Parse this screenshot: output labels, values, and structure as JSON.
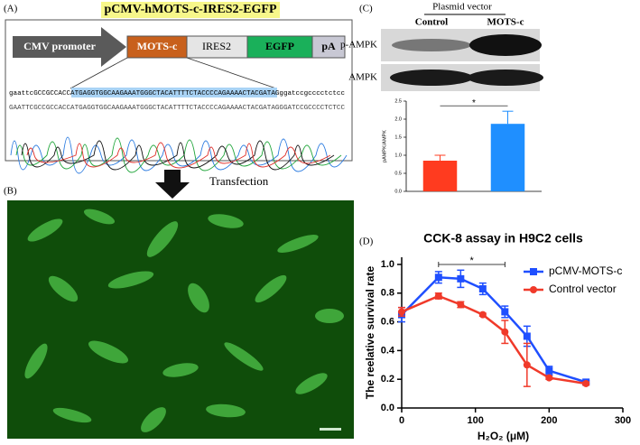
{
  "figure": {
    "a": {
      "label": "(A)",
      "title": "pCMV-hMOTS-c-IRES2-EGFP",
      "construct": [
        "CMV promoter",
        "MOTS-c",
        "IRES2",
        "EGFP",
        "pA"
      ],
      "seq_top": [
        "gaattcGCCGCCACC",
        "ATGAGGTGGCAAGAAATGGGCTACATTTTCTACCCCAGAAAACTACGATAG",
        "ggatccgcccctctcc"
      ],
      "seq_bottom": "GAATTCGCCGCCACCATGAGGTGGCAAGAAATGGGCTACATTTTCTACCCCAGAAAACTACGATAGGGATCCGCCCCTCTCC"
    },
    "arrow_label": "Transfection",
    "b": {
      "label": "(B)"
    },
    "c": {
      "label": "(C)",
      "header": "Plasmid vector",
      "lanes": [
        "Control",
        "MOTS-c"
      ],
      "blots": [
        "p-AMPK",
        "AMPK"
      ]
    },
    "d": {
      "label": "(D)"
    }
  },
  "chart_data": [
    {
      "type": "bar",
      "categories": [
        null,
        null
      ],
      "values": [
        0.85,
        1.87
      ],
      "errors": [
        0.15,
        0.35
      ],
      "colors": [
        "#ff3b1f",
        "#1f8fff"
      ],
      "ylabel": "pAMPK/AMPK",
      "annotation": "*",
      "ylim": [
        0,
        2.5
      ],
      "yticks": [
        {
          "value": 0,
          "label": "0.0"
        },
        0.5,
        {
          "value": 1,
          "label": "1.0"
        },
        1.5,
        {
          "value": 2,
          "label": "2.0"
        },
        2.5
      ]
    },
    {
      "type": "line",
      "title": "CCK-8 assay in H9C2 cells",
      "xlabel": "H₂O₂ (μM)",
      "ylabel": "The reelative survival rate",
      "x": [
        0,
        50,
        80,
        110,
        140,
        170,
        200,
        250
      ],
      "series": [
        {
          "name": "pCMV-MOTS-c",
          "color": "#1f4fff",
          "marker": "square",
          "values": [
            0.65,
            0.91,
            0.9,
            0.83,
            0.67,
            0.5,
            0.26,
            0.18
          ],
          "errors": [
            0.05,
            0.04,
            0.06,
            0.04,
            0.04,
            0.07,
            0.03,
            0.01
          ]
        },
        {
          "name": "Control vector",
          "color": "#f03a2a",
          "marker": "circle",
          "values": [
            0.67,
            0.78,
            0.72,
            0.65,
            0.53,
            0.3,
            0.21,
            0.17
          ],
          "errors": [
            0.03,
            0.02,
            0.02,
            0.01,
            0.08,
            0.15,
            0.01,
            0.01
          ]
        }
      ],
      "annotation": "*",
      "legend": "upper right",
      "xlim": [
        0,
        300
      ],
      "xticks": [
        0,
        100,
        200,
        300
      ],
      "ylim": [
        0,
        1.05
      ],
      "yticks": [
        {
          "value": 0,
          "label": "0.0"
        },
        0.2,
        0.4,
        0.6,
        0.8,
        {
          "value": 1,
          "label": "1.0"
        }
      ]
    }
  ]
}
